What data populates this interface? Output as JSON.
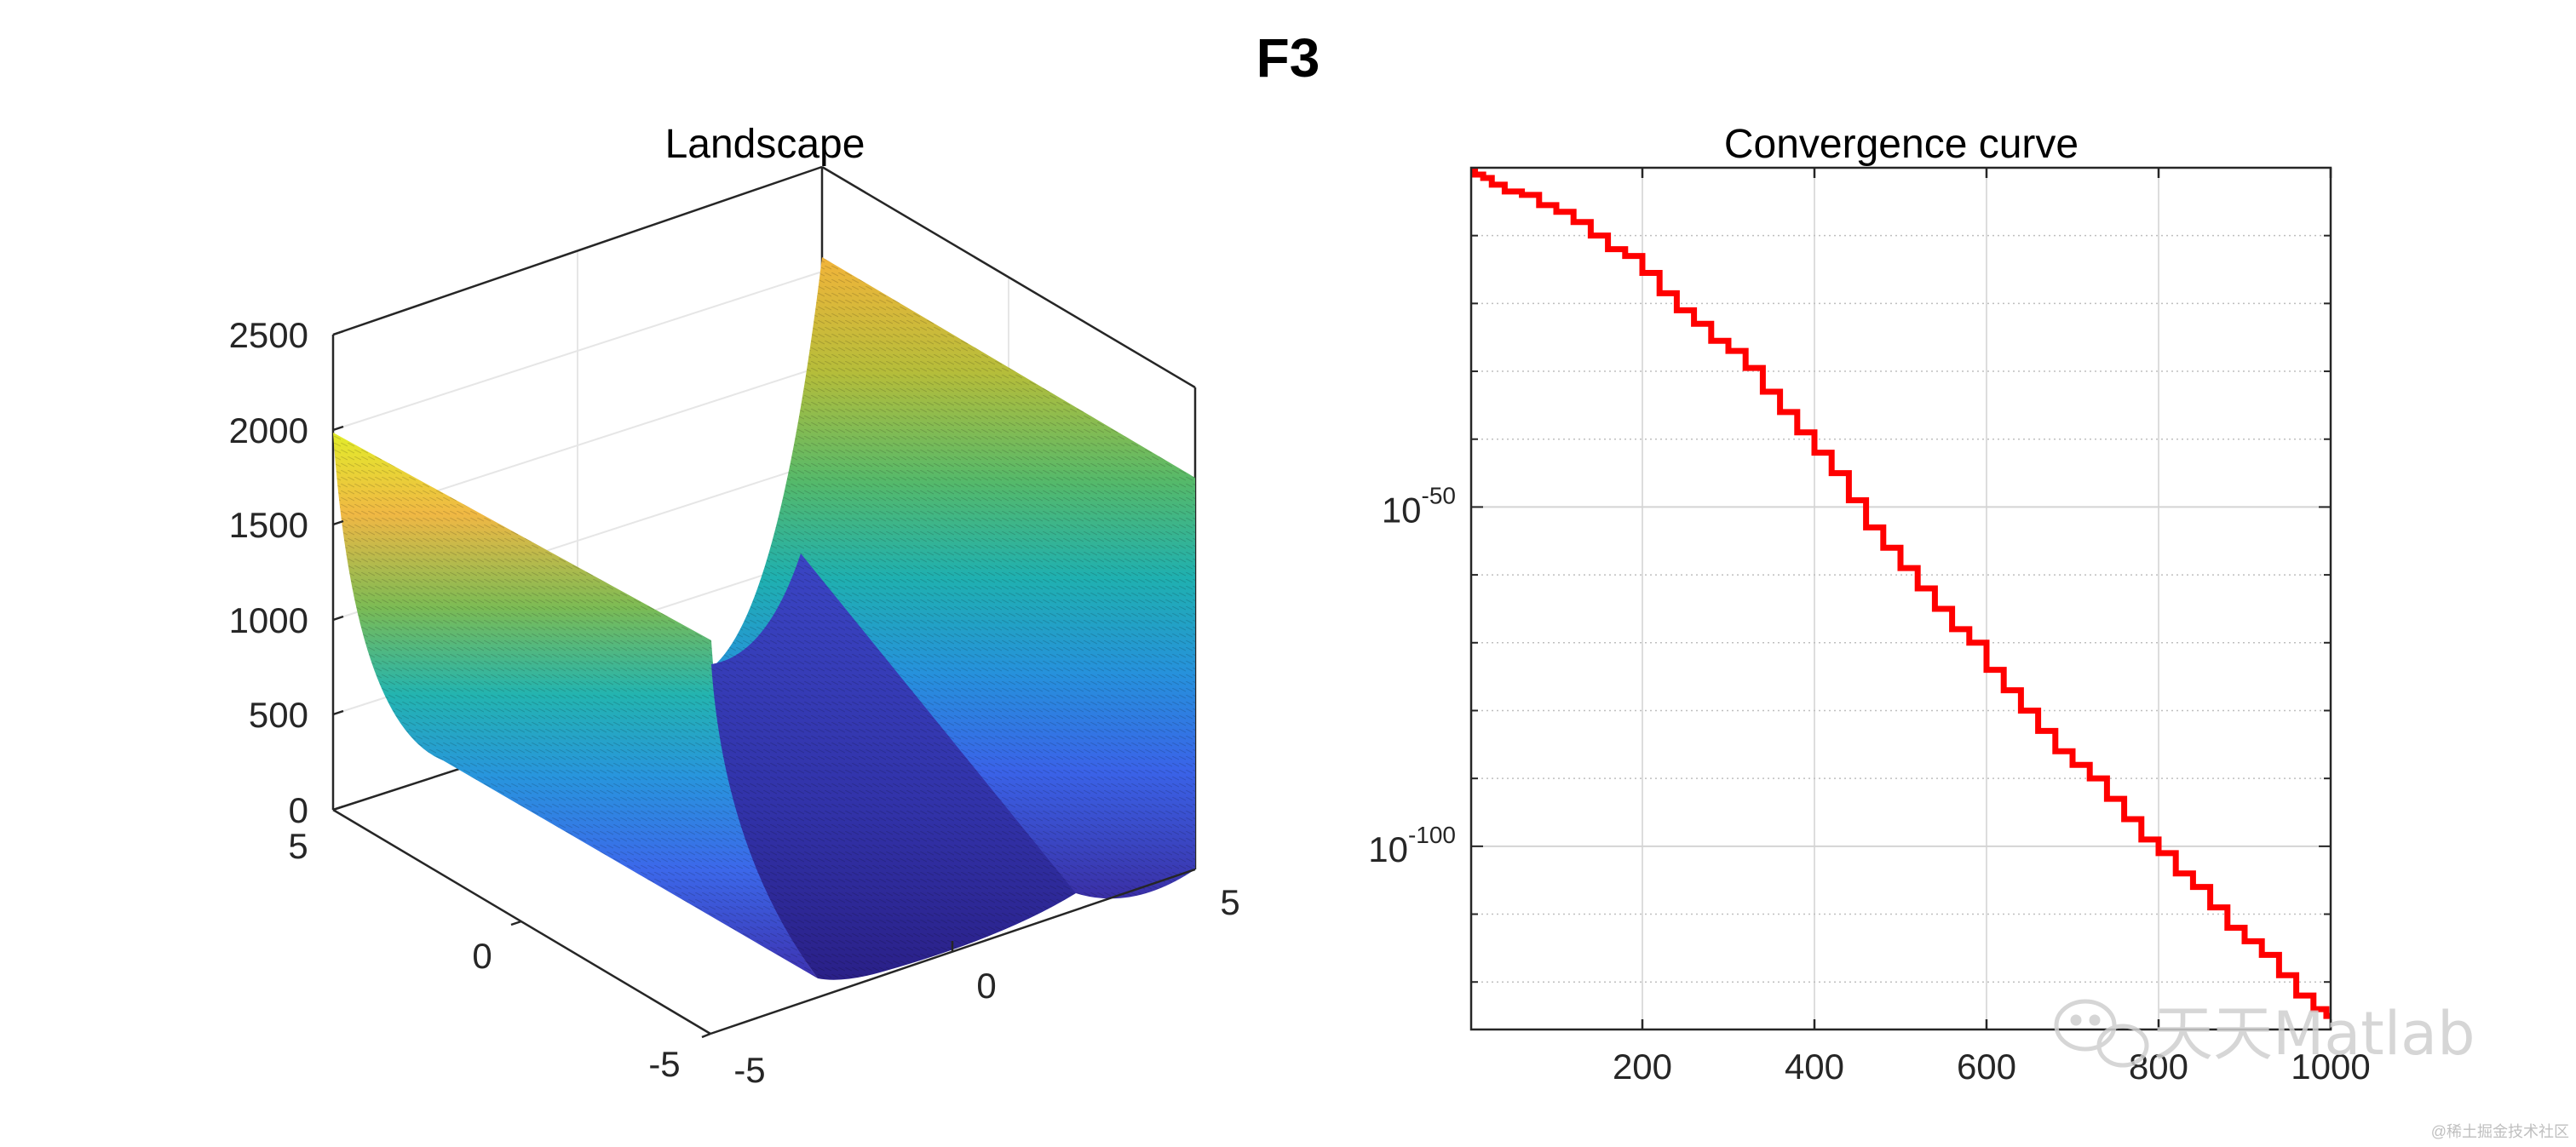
{
  "figure": {
    "title": "F3"
  },
  "watermark": {
    "text": "天天Matlab",
    "credit": "@稀土掘金技术社区"
  },
  "chart_data": [
    {
      "type": "surface",
      "title": "Landscape",
      "function": "F3",
      "x_range": [
        -5,
        5
      ],
      "y_range": [
        -5,
        5
      ],
      "zlim": [
        0,
        2500
      ],
      "z_ticks": [
        "0",
        "500",
        "1000",
        "1500",
        "2000",
        "2500"
      ],
      "x_ticks": [
        "-5",
        "0",
        "5"
      ],
      "y_ticks": [
        "-5",
        "0",
        "5"
      ],
      "colormap": "parula",
      "grid": true
    },
    {
      "type": "line",
      "title": "Convergence curve",
      "yscale": "log",
      "xlim": [
        1,
        1000
      ],
      "x_ticks": [
        "200",
        "400",
        "600",
        "800",
        "1000"
      ],
      "y_ticks": [
        {
          "base": "10",
          "exp": "-50",
          "value": -50
        },
        {
          "base": "10",
          "exp": "-100",
          "value": -100
        }
      ],
      "ylim_log10": [
        -127,
        0
      ],
      "series": [
        {
          "name": "Convergence curve",
          "color": "#ff0000",
          "x": [
            1,
            10,
            20,
            30,
            50,
            70,
            90,
            110,
            130,
            150,
            170,
            190,
            210,
            230,
            250,
            270,
            290,
            310,
            330,
            350,
            370,
            390,
            410,
            430,
            450,
            470,
            490,
            510,
            530,
            550,
            570,
            590,
            610,
            630,
            650,
            670,
            690,
            710,
            730,
            750,
            770,
            790,
            810,
            830,
            850,
            870,
            890,
            910,
            930,
            950,
            970,
            990,
            1000
          ],
          "log10_y": [
            0,
            -1,
            -1.5,
            -2.5,
            -3.5,
            -4,
            -5.5,
            -6.5,
            -8,
            -10,
            -12,
            -13,
            -15.5,
            -18.5,
            -21,
            -23,
            -25.5,
            -27,
            -29.5,
            -33,
            -36,
            -39,
            -42,
            -45,
            -49,
            -53,
            -56,
            -59,
            -62,
            -65,
            -68,
            -70,
            -74,
            -77,
            -80,
            -83,
            -86,
            -88,
            -90,
            -93,
            -96,
            -99,
            -101,
            -104,
            -106,
            -109,
            -112,
            -114,
            -116,
            -119,
            -122,
            -124,
            -125
          ]
        }
      ]
    }
  ]
}
